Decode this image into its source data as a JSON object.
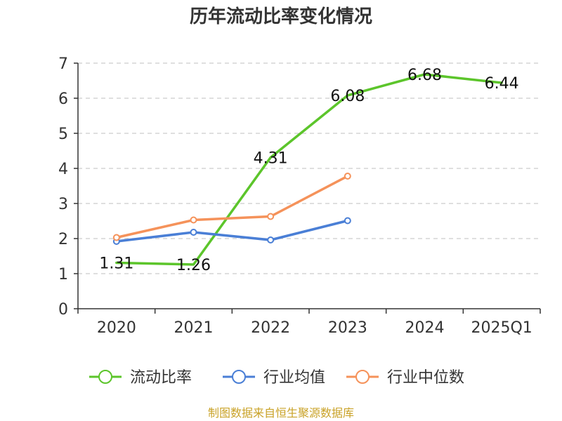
{
  "chart_data": {
    "type": "line",
    "title": "历年流动比率变化情况",
    "categories": [
      "2020",
      "2021",
      "2022",
      "2023",
      "2024",
      "2025Q1"
    ],
    "y_ticks": [
      "0",
      "1",
      "2",
      "3",
      "4",
      "5",
      "6",
      "7"
    ],
    "ylim": [
      0,
      7
    ],
    "grid": true,
    "legend_position": "bottom",
    "series": [
      {
        "name": "流动比率",
        "color": "#5cc52b",
        "values": [
          1.31,
          1.26,
          4.31,
          6.08,
          6.68,
          6.44
        ],
        "labels": [
          "1.31",
          "1.26",
          "4.31",
          "6.08",
          "6.68",
          "6.44"
        ],
        "markers": false
      },
      {
        "name": "行业均值",
        "color": "#4a7fd6",
        "values": [
          1.92,
          2.18,
          1.96,
          2.51,
          null,
          null
        ],
        "markers": true
      },
      {
        "name": "行业中位数",
        "color": "#f5925a",
        "values": [
          2.03,
          2.53,
          2.63,
          3.78,
          null,
          null
        ],
        "markers": true
      }
    ],
    "source": "制图数据来自恒生聚源数据库"
  }
}
